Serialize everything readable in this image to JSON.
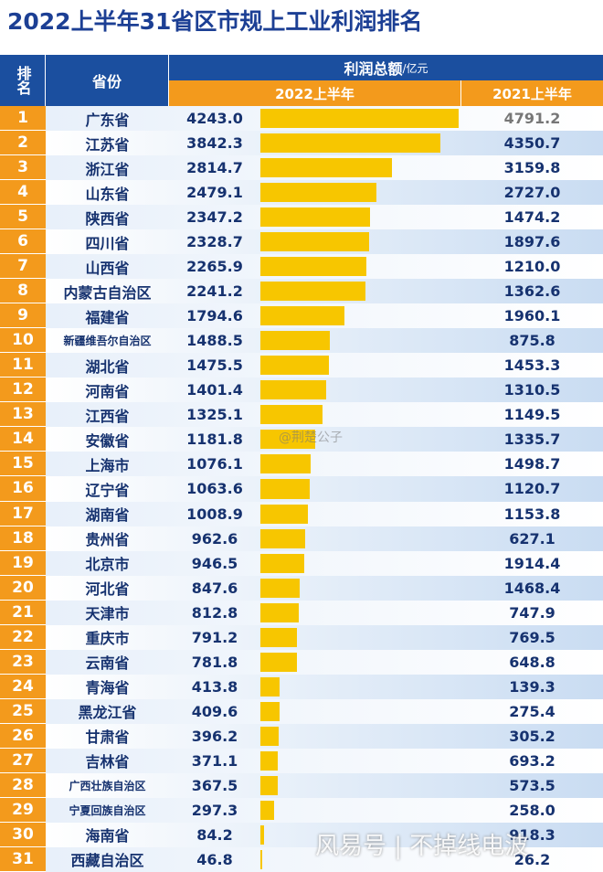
{
  "chart_data": {
    "type": "table-bar",
    "title": "2022上半年31省区市规上工业利润排名",
    "header_rank": "排名",
    "header_province": "省份",
    "header_profit": "利润总额",
    "header_unit": "/亿元",
    "ranks": [
      1,
      2,
      3,
      4,
      5,
      6,
      7,
      8,
      9,
      10,
      11,
      12,
      13,
      14,
      15,
      16,
      17,
      18,
      19,
      20,
      21,
      22,
      23,
      24,
      25,
      26,
      27,
      28,
      29,
      30,
      31
    ],
    "categories": [
      "广东省",
      "江苏省",
      "浙江省",
      "山东省",
      "陕西省",
      "四川省",
      "山西省",
      "内蒙古自治区",
      "福建省",
      "新疆维吾尔自治区",
      "湖北省",
      "河南省",
      "江西省",
      "安徽省",
      "上海市",
      "辽宁省",
      "湖南省",
      "贵州省",
      "北京市",
      "河北省",
      "天津市",
      "重庆市",
      "云南省",
      "青海省",
      "黑龙江省",
      "甘肃省",
      "吉林省",
      "广西壮族自治区",
      "宁夏回族自治区",
      "海南省",
      "西藏自治区"
    ],
    "series": [
      {
        "name": "2022上半年",
        "color": "#f7c600",
        "values": [
          4243.0,
          3842.3,
          2814.7,
          2479.1,
          2347.2,
          2328.7,
          2265.9,
          2241.2,
          1794.6,
          1488.5,
          1475.5,
          1401.4,
          1325.1,
          1181.8,
          1076.1,
          1063.6,
          1008.9,
          962.6,
          946.5,
          847.6,
          812.8,
          791.2,
          781.8,
          413.8,
          409.6,
          396.2,
          371.1,
          367.5,
          297.3,
          84.2,
          46.8
        ],
        "value_labels": [
          "4243.0",
          "3842.3",
          "2814.7",
          "2479.1",
          "2347.2",
          "2328.7",
          "2265.9",
          "2241.2",
          "1794.6",
          "1488.5",
          "1475.5",
          "1401.4",
          "1325.1",
          "1181.8",
          "1076.1",
          "1063.6",
          "1008.9",
          "962.6",
          "946.5",
          "847.6",
          "812.8",
          "791.2",
          "781.8",
          "413.8",
          "409.6",
          "396.2",
          "371.1",
          "367.5",
          "297.3",
          "84.2",
          "46.8"
        ]
      },
      {
        "name": "2021上半年",
        "values": [
          4791.2,
          4350.7,
          3159.8,
          2727.0,
          1474.2,
          1897.6,
          1210.0,
          1362.6,
          1960.1,
          875.8,
          1453.3,
          1310.5,
          1149.5,
          1335.7,
          1498.7,
          1120.7,
          1153.8,
          627.1,
          1914.4,
          1468.4,
          747.9,
          769.5,
          648.8,
          139.3,
          275.4,
          305.2,
          693.2,
          573.5,
          258.0,
          918.3,
          26.2
        ],
        "value_labels": [
          "4791.2",
          "4350.7",
          "3159.8",
          "2727.0",
          "1474.2",
          "1897.6",
          "1210.0",
          "1362.6",
          "1960.1",
          "875.8",
          "1453.3",
          "1310.5",
          "1149.5",
          "1335.7",
          "1498.7",
          "1120.7",
          "1153.8",
          "627.1",
          "1914.4",
          "1468.4",
          "747.9",
          "769.5",
          "648.8",
          "139.3",
          "275.4",
          "305.2",
          "693.2",
          "573.5",
          "258.0",
          "918.3",
          "26.2"
        ]
      }
    ],
    "xlim": [
      0,
      4300
    ],
    "watermarks": [
      "@荆楚公子",
      "风易号 | 不掉线电波"
    ]
  }
}
